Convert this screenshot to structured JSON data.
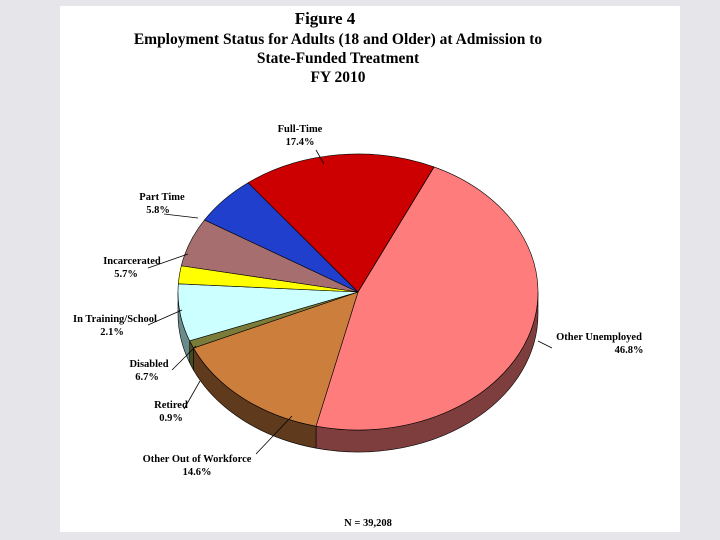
{
  "chart_data": {
    "type": "pie",
    "title": "Figure 4",
    "subtitle": [
      "Employment Status for Adults (18 and Older) at Admission to",
      "State-Funded Treatment",
      "FY 2010"
    ],
    "note": "N = 39,208",
    "slices": [
      {
        "label": "Other Unemployed",
        "pct_label": "46.8%",
        "value": 46.8,
        "color": "#ff7c7c",
        "side_color": "#7f3e3e"
      },
      {
        "label": "Other Out of Workforce",
        "pct_label": "14.6%",
        "value": 14.6,
        "color": "#cc7f3c",
        "side_color": "#5f3a1c"
      },
      {
        "label": "Retired",
        "pct_label": "0.9%",
        "value": 0.9,
        "color": "#7b7b3a",
        "side_color": "#4a4a22"
      },
      {
        "label": "Disabled",
        "pct_label": "6.7%",
        "value": 6.7,
        "color": "#ccffff",
        "side_color": "#6b8a8a"
      },
      {
        "label": "In Training/School",
        "pct_label": "2.1%",
        "value": 2.1,
        "color": "#ffff00",
        "side_color": "#8f8f00"
      },
      {
        "label": "Incarcerated",
        "pct_label": "5.7%",
        "value": 5.7,
        "color": "#a66e6e",
        "side_color": "#5a3a3a"
      },
      {
        "label": "Part Time",
        "pct_label": "5.8%",
        "value": 5.8,
        "color": "#1f3fcc",
        "side_color": "#10236f"
      },
      {
        "label": "Full-Time",
        "pct_label": "17.4%",
        "value": 17.4,
        "color": "#cc0000",
        "side_color": "#6a0000"
      },
      {
        "label": "",
        "pct_label": "",
        "value": 0,
        "color": "#0a8080",
        "side_color": "#064848"
      }
    ]
  }
}
